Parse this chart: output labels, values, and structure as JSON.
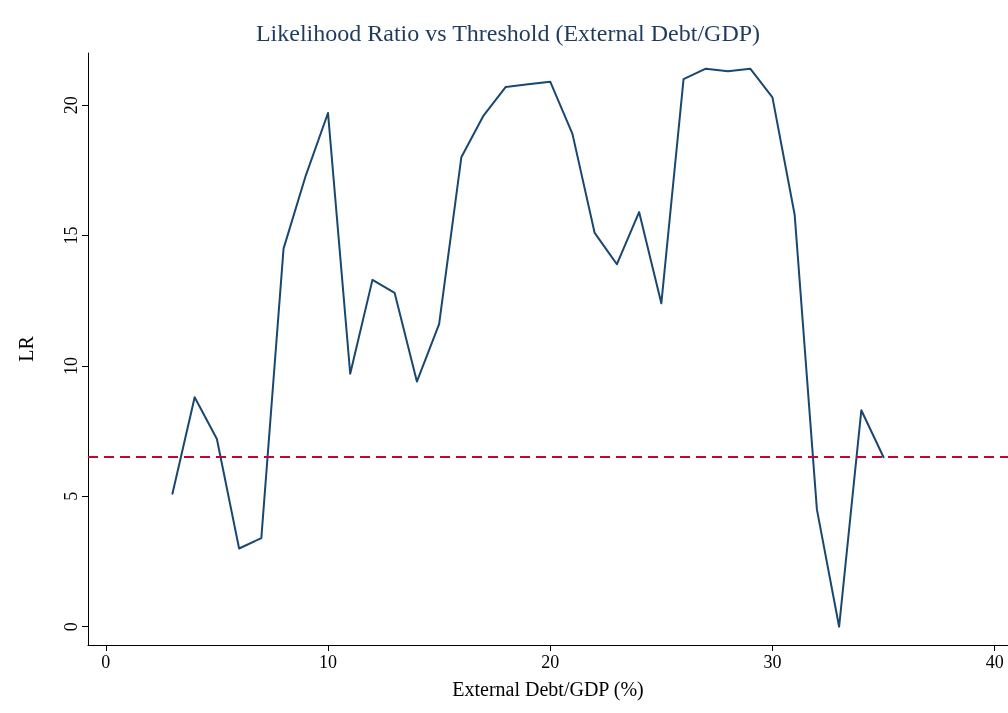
{
  "chart_data": {
    "type": "line",
    "title": "Likelihood Ratio vs Threshold (External Debt/GDP)",
    "xlabel": "External Debt/GDP (%)",
    "ylabel": "LR",
    "x": [
      3,
      4,
      5,
      6,
      7,
      8,
      9,
      10,
      11,
      12,
      13,
      14,
      15,
      16,
      17,
      18,
      19,
      20,
      21,
      22,
      23,
      24,
      25,
      26,
      27,
      28,
      29,
      30,
      31,
      32,
      33,
      34,
      35
    ],
    "series": [
      {
        "color": "#1a476f",
        "values": [
          5.1,
          8.8,
          7.2,
          3.0,
          3.4,
          14.5,
          17.3,
          19.7,
          9.7,
          13.3,
          12.8,
          9.4,
          11.6,
          18.0,
          19.6,
          20.7,
          20.8,
          20.9,
          18.9,
          15.1,
          13.9,
          15.9,
          12.4,
          21.0,
          21.4,
          21.3,
          21.4,
          20.3,
          15.8,
          4.5,
          0,
          8.3,
          6.5
        ]
      }
    ],
    "xlim": [
      -0.8,
      40.6
    ],
    "xticks": [
      0,
      10,
      20,
      30,
      40
    ],
    "ylim": [
      -0.7,
      22
    ],
    "yticks": [
      0,
      5,
      10,
      15,
      20
    ],
    "ref_lines": [
      {
        "axis": "y",
        "value": 6.5,
        "color": "#c10534",
        "line_style": "dashed"
      }
    ],
    "grid": false,
    "marker": "none",
    "line_style": "solid"
  }
}
